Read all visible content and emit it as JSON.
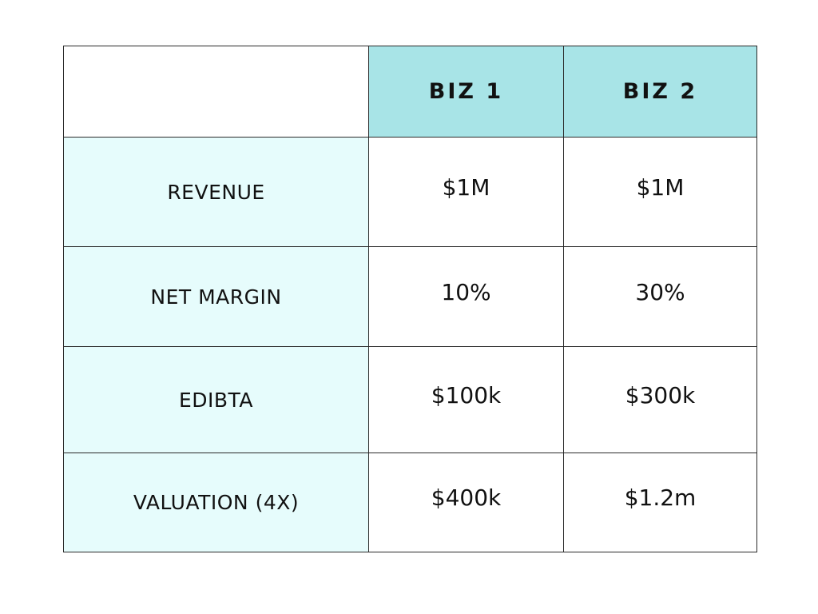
{
  "chart_data": {
    "type": "table",
    "columns": [
      "",
      "BIZ 1",
      "BIZ 2"
    ],
    "rows": [
      {
        "label": "REVENUE",
        "values": [
          "$1M",
          "$1M"
        ]
      },
      {
        "label": "NET MARGIN",
        "values": [
          "10%",
          "30%"
        ]
      },
      {
        "label": "EDIBTA",
        "values": [
          "$100k",
          "$300k"
        ]
      },
      {
        "label": "VALUATION (4X)",
        "values": [
          "$400k",
          "$1.2m"
        ]
      }
    ]
  },
  "colors": {
    "header_background": "#a8e4e7",
    "label_background": "#e6fcfc",
    "value_background": "#ffffff",
    "border": "#2a2a2a",
    "text": "#111111"
  }
}
